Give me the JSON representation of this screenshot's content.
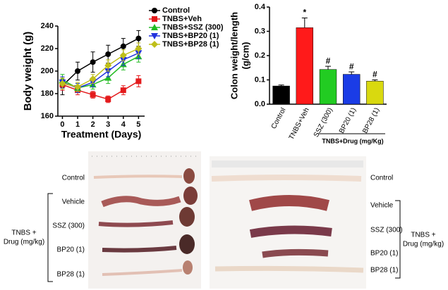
{
  "chart_data": [
    {
      "type": "line",
      "ylabel": "Body weight (g)",
      "xlabel": "Treatment (Days)",
      "x": [
        0,
        1,
        2,
        3,
        4,
        5
      ],
      "xlim": [
        -0.3,
        5.4
      ],
      "xticks": [
        0,
        1,
        2,
        3,
        4,
        5
      ],
      "ylim": [
        160,
        240
      ],
      "yticks": [
        160,
        180,
        200,
        220,
        240
      ],
      "legend": "right",
      "series": [
        {
          "name": "Control",
          "color": "#000000",
          "marker": "circle",
          "values": [
            187,
            200,
            208,
            215,
            222,
            229
          ],
          "errors": [
            8,
            8,
            9,
            8,
            7,
            7
          ]
        },
        {
          "name": "TNBS+Veh",
          "color": "#e41a1c",
          "marker": "square",
          "values": [
            188,
            183,
            179,
            175,
            183,
            191
          ],
          "errors": [
            5,
            4,
            3,
            3,
            4,
            5
          ]
        },
        {
          "name": "TNBS+SSZ (300)",
          "color": "#22bb22",
          "marker": "triangle",
          "values": [
            192,
            185,
            188,
            194,
            206,
            213
          ],
          "errors": [
            5,
            4,
            4,
            5,
            5,
            5
          ]
        },
        {
          "name": "TNBS+BP20 (1)",
          "color": "#2233dd",
          "marker": "triangle-down",
          "values": [
            190,
            185,
            190,
            200,
            210,
            216
          ],
          "errors": [
            5,
            4,
            4,
            5,
            5,
            5
          ]
        },
        {
          "name": "TNBS+BP28 (1)",
          "color": "#bfbf1a",
          "marker": "diamond",
          "values": [
            189,
            186,
            193,
            205,
            214,
            220
          ],
          "errors": [
            5,
            4,
            4,
            5,
            5,
            5
          ]
        }
      ]
    },
    {
      "type": "bar",
      "ylabel": [
        "Colon weight/length",
        "(g/cm)"
      ],
      "categories": [
        "Control",
        "TNBS+Veh",
        "SSZ (300)",
        "BP20 (1)",
        "BP28 (1)"
      ],
      "values": [
        0.075,
        0.315,
        0.143,
        0.123,
        0.095
      ],
      "errors": [
        0.004,
        0.04,
        0.013,
        0.01,
        0.005
      ],
      "colors": [
        "#000000",
        "#ff1a1a",
        "#22cc22",
        "#1a3ce6",
        "#d9d90f"
      ],
      "markers": [
        null,
        "*",
        "#",
        "#",
        "#"
      ],
      "group_label": "TNBS+Drug (mg/Kg)",
      "ylim": [
        0,
        0.4
      ],
      "yticks": [
        {
          "value": 0,
          "label": "0.0"
        },
        0.1,
        0.2,
        0.3,
        0.4
      ]
    }
  ],
  "photo_panel": {
    "left_labels": [
      "Control",
      "Vehicle",
      "SSZ (300)",
      "BP20 (1)",
      "BP28 (1)"
    ],
    "right_labels": [
      "Control",
      "Vehicle",
      "SSZ (300)",
      "BP20 (1)",
      "BP28 (1)"
    ],
    "group_label": [
      "TNBS +",
      "Drug (mg/kg)"
    ]
  }
}
